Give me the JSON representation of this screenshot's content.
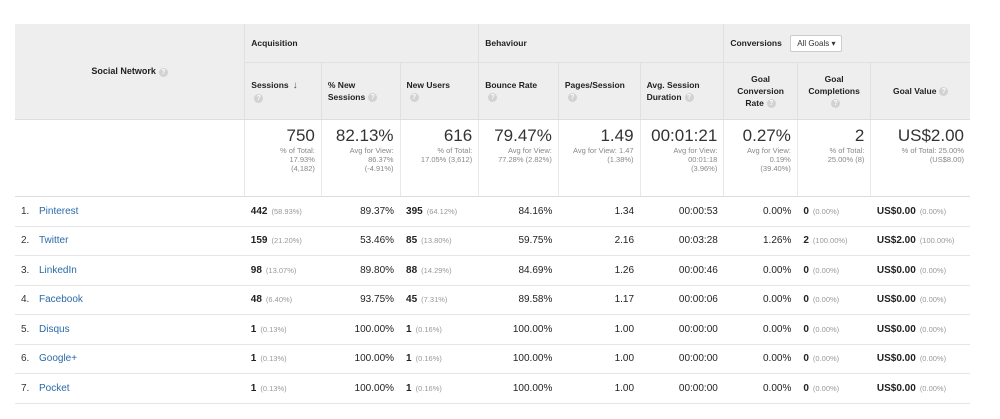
{
  "header": {
    "social_network": "Social Network",
    "acquisition": "Acquisition",
    "behaviour": "Behaviour",
    "conversions": "Conversions",
    "goals_select": "All Goals"
  },
  "columns": {
    "sessions": "Sessions",
    "new_sessions": "% New Sessions",
    "new_users": "New Users",
    "bounce_rate": "Bounce Rate",
    "pages_session": "Pages/Session",
    "avg_duration": "Avg. Session Duration",
    "goal_conv": "Goal Conversion Rate",
    "goal_comp": "Goal Completions",
    "goal_value": "Goal Value"
  },
  "totals": {
    "sessions": "750",
    "sessions_s1": "% of Total:",
    "sessions_s2": "17.93%",
    "sessions_s3": "(4,182)",
    "new_sessions": "82.13%",
    "new_sessions_s1": "Avg for View:",
    "new_sessions_s2": "86.37%",
    "new_sessions_s3": "(-4.91%)",
    "new_users": "616",
    "new_users_s1": "% of Total:",
    "new_users_s2": "17.05% (3,612)",
    "bounce": "79.47%",
    "bounce_s1": "Avg for View:",
    "bounce_s2": "77.28% (2.82%)",
    "pages": "1.49",
    "pages_s1": "Avg for View: 1.47",
    "pages_s2": "(1.38%)",
    "duration": "00:01:21",
    "duration_s1": "Avg for View:",
    "duration_s2": "00:01:18",
    "duration_s3": "(3.96%)",
    "conv": "0.27%",
    "conv_s1": "Avg for View:",
    "conv_s2": "0.19%",
    "conv_s3": "(39.40%)",
    "comp": "2",
    "comp_s1": "% of Total:",
    "comp_s2": "25.00% (8)",
    "value": "US$2.00",
    "value_s1": "% of Total: 25.00%",
    "value_s2": "(US$8.00)"
  },
  "rows": [
    {
      "num": "1.",
      "name": "Pinterest",
      "sessions": "442",
      "sessions_pct": "(58.93%)",
      "new_sessions": "89.37%",
      "new_users": "395",
      "new_users_pct": "(64.12%)",
      "bounce": "84.16%",
      "pages": "1.34",
      "duration": "00:00:53",
      "conv": "0.00%",
      "comp": "0",
      "comp_pct": "(0.00%)",
      "value": "US$0.00",
      "value_pct": "(0.00%)"
    },
    {
      "num": "2.",
      "name": "Twitter",
      "sessions": "159",
      "sessions_pct": "(21.20%)",
      "new_sessions": "53.46%",
      "new_users": "85",
      "new_users_pct": "(13.80%)",
      "bounce": "59.75%",
      "pages": "2.16",
      "duration": "00:03:28",
      "conv": "1.26%",
      "comp": "2",
      "comp_pct": "(100.00%)",
      "value": "US$2.00",
      "value_pct": "(100.00%)"
    },
    {
      "num": "3.",
      "name": "LinkedIn",
      "sessions": "98",
      "sessions_pct": "(13.07%)",
      "new_sessions": "89.80%",
      "new_users": "88",
      "new_users_pct": "(14.29%)",
      "bounce": "84.69%",
      "pages": "1.26",
      "duration": "00:00:46",
      "conv": "0.00%",
      "comp": "0",
      "comp_pct": "(0.00%)",
      "value": "US$0.00",
      "value_pct": "(0.00%)"
    },
    {
      "num": "4.",
      "name": "Facebook",
      "sessions": "48",
      "sessions_pct": "(6.40%)",
      "new_sessions": "93.75%",
      "new_users": "45",
      "new_users_pct": "(7.31%)",
      "bounce": "89.58%",
      "pages": "1.17",
      "duration": "00:00:06",
      "conv": "0.00%",
      "comp": "0",
      "comp_pct": "(0.00%)",
      "value": "US$0.00",
      "value_pct": "(0.00%)"
    },
    {
      "num": "5.",
      "name": "Disqus",
      "sessions": "1",
      "sessions_pct": "(0.13%)",
      "new_sessions": "100.00%",
      "new_users": "1",
      "new_users_pct": "(0.16%)",
      "bounce": "100.00%",
      "pages": "1.00",
      "duration": "00:00:00",
      "conv": "0.00%",
      "comp": "0",
      "comp_pct": "(0.00%)",
      "value": "US$0.00",
      "value_pct": "(0.00%)"
    },
    {
      "num": "6.",
      "name": "Google+",
      "sessions": "1",
      "sessions_pct": "(0.13%)",
      "new_sessions": "100.00%",
      "new_users": "1",
      "new_users_pct": "(0.16%)",
      "bounce": "100.00%",
      "pages": "1.00",
      "duration": "00:00:00",
      "conv": "0.00%",
      "comp": "0",
      "comp_pct": "(0.00%)",
      "value": "US$0.00",
      "value_pct": "(0.00%)"
    },
    {
      "num": "7.",
      "name": "Pocket",
      "sessions": "1",
      "sessions_pct": "(0.13%)",
      "new_sessions": "100.00%",
      "new_users": "1",
      "new_users_pct": "(0.16%)",
      "bounce": "100.00%",
      "pages": "1.00",
      "duration": "00:00:00",
      "conv": "0.00%",
      "comp": "0",
      "comp_pct": "(0.00%)",
      "value": "US$0.00",
      "value_pct": "(0.00%)"
    }
  ]
}
